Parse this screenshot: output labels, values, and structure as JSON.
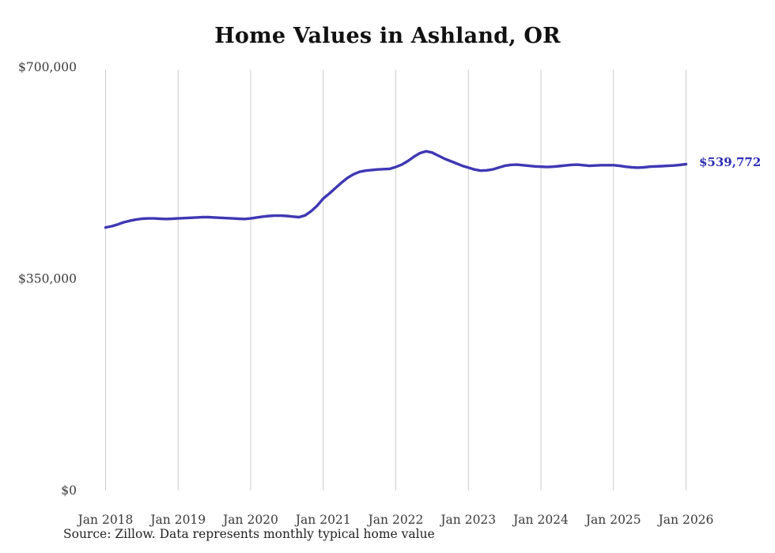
{
  "title": "Home Values in Ashland, OR",
  "end_label": "$539,772",
  "source_note": "Source: Zillow. Data represents monthly typical home value",
  "chart_data": {
    "type": "line",
    "title": "Home Values in Ashland, OR",
    "frequency": "monthly",
    "x_start": "Jan 2018",
    "x_end": "Jan 2026",
    "x_tick_labels": [
      "Jan 2018",
      "Jan 2019",
      "Jan 2020",
      "Jan 2021",
      "Jan 2022",
      "Jan 2023",
      "Jan 2024",
      "Jan 2025",
      "Jan 2026"
    ],
    "y_tick_labels": [
      "$0",
      "$350,000",
      "$700,000"
    ],
    "y_tick_values": [
      0,
      350000,
      700000
    ],
    "ylim": [
      0,
      700000
    ],
    "grid": "vertical-only",
    "legend": "none",
    "line_color": "#3e38b4",
    "label_color": "#2d2db4",
    "grid_color": "#cccccc",
    "tick_text_color": "#3a3a3a",
    "last_value": 539772,
    "series": [
      {
        "name": "Typical home value",
        "values": [
          435000,
          437000,
          440000,
          443500,
          446000,
          448000,
          449500,
          450000,
          450000,
          449500,
          449000,
          449500,
          450000,
          450500,
          451000,
          451500,
          452000,
          452000,
          451500,
          451000,
          450500,
          450000,
          449500,
          449000,
          450000,
          451500,
          453000,
          454000,
          454500,
          454500,
          454000,
          453000,
          452000,
          455000,
          462000,
          471000,
          483000,
          491000,
          500000,
          509000,
          517000,
          523000,
          527000,
          529000,
          530000,
          531000,
          531500,
          532000,
          535000,
          539000,
          545000,
          552000,
          558000,
          561000,
          559000,
          554000,
          549000,
          545000,
          541000,
          537000,
          534000,
          531000,
          529000,
          529500,
          531000,
          534000,
          537000,
          538500,
          539000,
          538000,
          537000,
          536000,
          535500,
          535000,
          535500,
          536500,
          537500,
          538500,
          539000,
          538000,
          537000,
          537500,
          538000,
          538000,
          538000,
          537000,
          535500,
          534500,
          534000,
          534500,
          535500,
          536000,
          536500,
          537000,
          537500,
          538500,
          539772
        ]
      }
    ]
  }
}
